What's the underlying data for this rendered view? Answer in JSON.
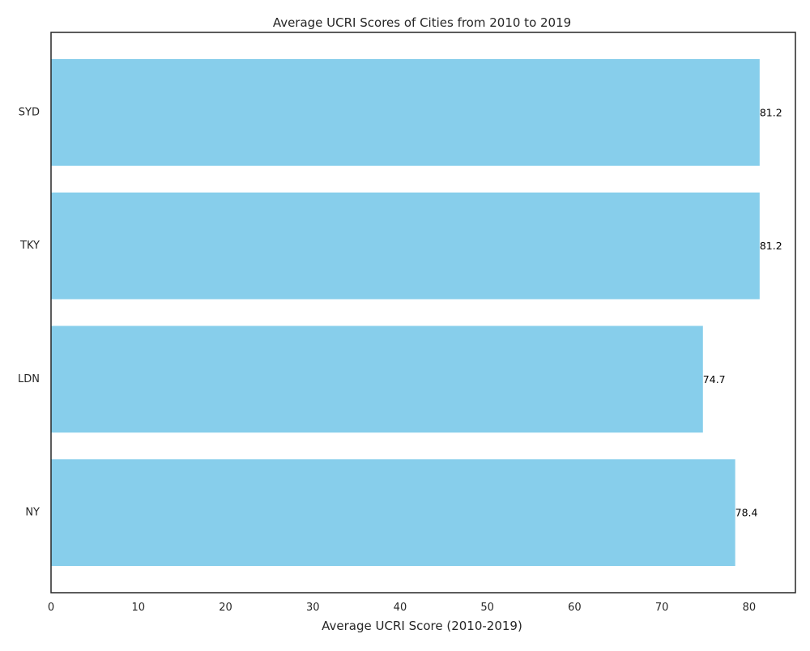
{
  "chart_data": {
    "type": "bar",
    "orientation": "horizontal",
    "title": "Average UCRI Scores of Cities from 2010 to 2019",
    "xlabel": "Average UCRI Score (2010-2019)",
    "ylabel": "",
    "categories": [
      "NY",
      "LDN",
      "TKY",
      "SYD"
    ],
    "values": [
      78.4,
      74.7,
      81.2,
      81.2
    ],
    "data_labels": [
      "78.4",
      "74.7",
      "81.2",
      "81.2"
    ],
    "xlim": [
      0,
      85.3
    ],
    "xticks": [
      0,
      10,
      20,
      30,
      40,
      50,
      60,
      70,
      80
    ],
    "bar_color": "#87ceeb",
    "grid": false,
    "legend": "none"
  }
}
